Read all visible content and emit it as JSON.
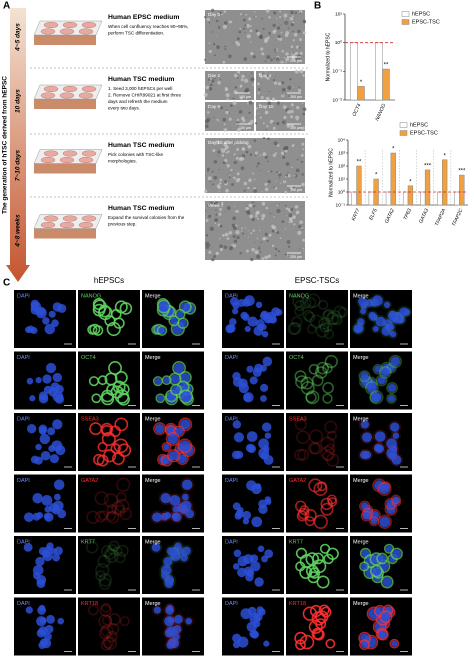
{
  "panel_labels": [
    "A",
    "B",
    "C"
  ],
  "panel_a": {
    "side_title": "The generation of hTSC derived from hEPSC",
    "steps": [
      {
        "duration": "4~5 days",
        "medium": "Human EPSC medium",
        "instructions": [
          "When cell confluency reaches 90~95%,",
          "perform TSC differentiation."
        ],
        "images": [
          {
            "label": "Day 0",
            "scale": "200 μm"
          }
        ]
      },
      {
        "duration": "10 days",
        "medium": "Human TSC medium",
        "instructions": [
          "1. Seed 3,000 hEPSCs per well",
          "2. Remove CHIR99021 at first three",
          "days and refresh the medium",
          "every two days."
        ],
        "images": [
          {
            "label": "Day 2",
            "scale": "100 μm"
          },
          {
            "label": "Day 4",
            "scale": "200 μm"
          },
          {
            "label": "Day 6",
            "scale": "100 μm"
          },
          {
            "label": "Day 10",
            "scale": "100 μm"
          }
        ]
      },
      {
        "duration": "7~10 days",
        "medium": "Human TSC medium",
        "instructions": [
          "Pick colonies with TSC-like",
          "morphologies."
        ],
        "images": [
          {
            "label": "Day 10 after picking",
            "scale": "100 μm"
          }
        ]
      },
      {
        "duration": "4~8 weeks",
        "medium": "Human TSC medium",
        "instructions": [
          "Expand the survival colonies from the",
          "previous step."
        ],
        "images": [
          {
            "label": "Week 7",
            "scale": "200 μm"
          }
        ]
      }
    ]
  },
  "chart_data": [
    {
      "type": "bar",
      "y_label": "Normalized to hEPSC",
      "log_scale": true,
      "categories": [
        "OCT4",
        "NANOG"
      ],
      "series": [
        {
          "name": "hEPSC",
          "color": "#ffffff",
          "values": [
            1,
            1
          ]
        },
        {
          "name": "EPSC-TSC",
          "color": "#f0a040",
          "values": [
            0.03,
            0.12
          ]
        }
      ],
      "annotations": [
        "*",
        "**"
      ],
      "reference_line": {
        "value": 1,
        "color": "#d62728"
      },
      "ylim": [
        0.01,
        10
      ],
      "yticks": [
        {
          "value": 10,
          "label": "10¹"
        },
        {
          "value": 1,
          "label": "10⁰"
        },
        {
          "value": 0.1,
          "label": "10⁻¹"
        },
        {
          "value": 0.01,
          "label": "10⁻²"
        }
      ]
    },
    {
      "type": "bar",
      "y_label": "Normalized to hEPSC",
      "log_scale": true,
      "categories": [
        "KRT7",
        "ELF5",
        "GATA2",
        "TP63",
        "GATA3",
        "TFAP2A",
        "TFAP2C"
      ],
      "series": [
        {
          "name": "hEPSC",
          "color": "#ffffff",
          "values": [
            1,
            1,
            1,
            1,
            1,
            1,
            1
          ]
        },
        {
          "name": "EPSC-TSC",
          "color": "#f0a040",
          "values": [
            100,
            10,
            1000,
            3,
            50,
            300,
            20
          ]
        }
      ],
      "annotations": [
        "**",
        "*",
        "*",
        "*",
        "***",
        "*",
        "***"
      ],
      "reference_line": {
        "value": 1,
        "color": "#d62728"
      },
      "ylim": [
        0.1,
        10000
      ],
      "yticks": [
        {
          "value": 10000,
          "label": "10⁴"
        },
        {
          "value": 1000,
          "label": "10³"
        },
        {
          "value": 100,
          "label": "10²"
        },
        {
          "value": 10,
          "label": "10¹"
        },
        {
          "value": 1,
          "label": "10⁰"
        },
        {
          "value": 0.1,
          "label": "10⁻¹"
        }
      ]
    }
  ],
  "panel_c": {
    "groups": [
      "hEPSCs",
      "EPSC-TSCs"
    ],
    "channel_labels": [
      "DAPI",
      "Merge"
    ],
    "rows": [
      {
        "marker": "NANOG",
        "color": "#5fd35f"
      },
      {
        "marker": "OCT4",
        "color": "#5fd35f"
      },
      {
        "marker": "SSEA3",
        "color": "#ff3030"
      },
      {
        "marker": "GATA2",
        "color": "#ff3030"
      },
      {
        "marker": "KRT7",
        "color": "#5fd35f"
      },
      {
        "marker": "KRT18",
        "color": "#ff3030"
      }
    ]
  }
}
